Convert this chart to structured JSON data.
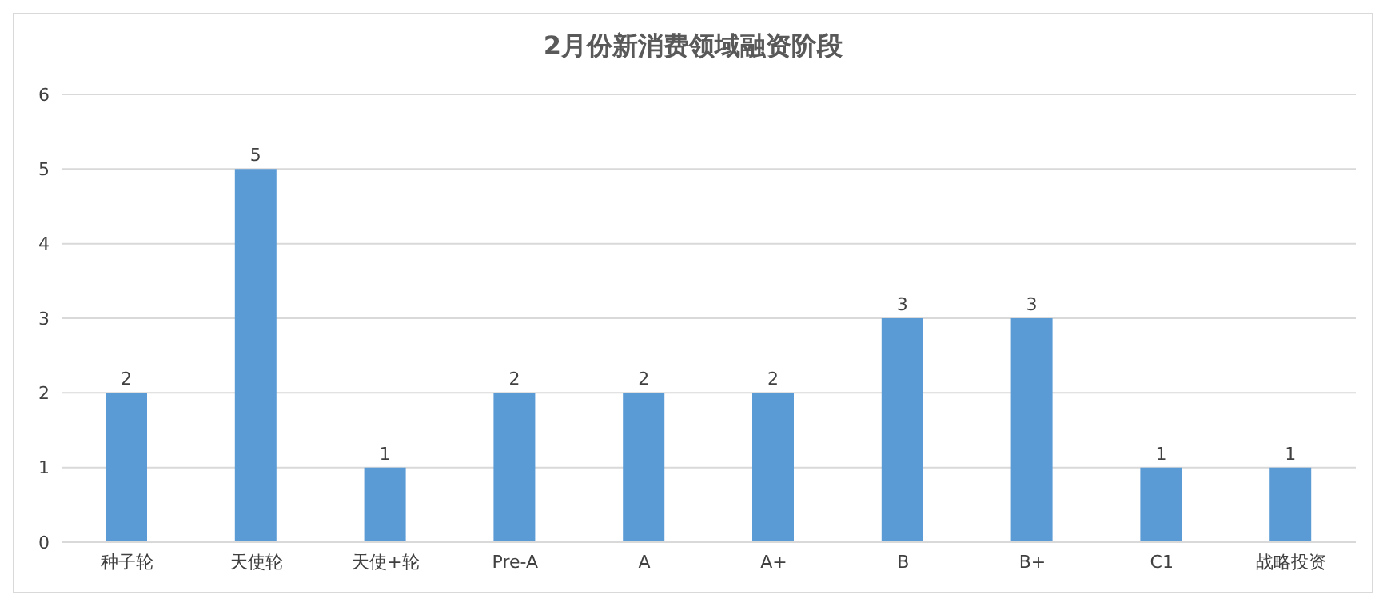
{
  "chart_data": {
    "type": "bar",
    "title": "2月份新消费领域融资阶段",
    "categories": [
      "种子轮",
      "天使轮",
      "天使+轮",
      "Pre-A",
      "A",
      "A+",
      "B",
      "B+",
      "C1",
      "战略投资"
    ],
    "values": [
      2,
      5,
      1,
      2,
      2,
      2,
      3,
      3,
      1,
      1
    ],
    "color": "#5b9bd5",
    "ylim": [
      0,
      6
    ],
    "yticks": [
      0,
      1,
      2,
      3,
      4,
      5,
      6
    ],
    "grid": "y",
    "data_labels": true
  }
}
